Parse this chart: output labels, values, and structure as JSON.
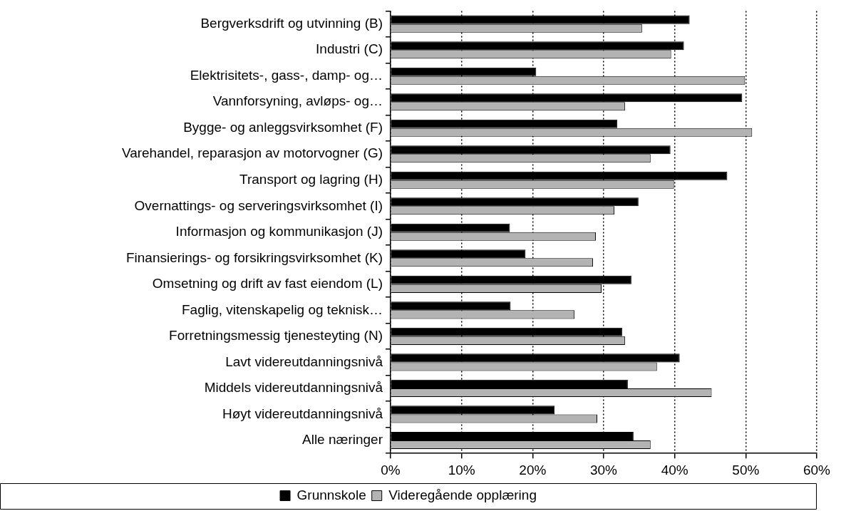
{
  "chart_data": {
    "type": "bar",
    "orientation": "horizontal",
    "categories": [
      "Bergverksdrift og utvinning (B)",
      "Industri (C)",
      "Elektrisitets-, gass-, damp- og…",
      "Vannforsyning, avløps- og…",
      "Bygge- og anleggsvirksomhet (F)",
      "Varehandel, reparasjon av motorvogner (G)",
      "Transport og lagring (H)",
      "Overnattings- og serveringsvirksomhet (I)",
      "Informasjon og kommunikasjon (J)",
      "Finansierings- og forsikringsvirksomhet (K)",
      "Omsetning og drift av fast eiendom (L)",
      "Faglig, vitenskapelig og teknisk…",
      "Forretningsmessig tjenesteyting (N)",
      "Lavt videreutdanningsnivå",
      "Middels videreutdanningsnivå",
      "Høyt videreutdanningsnivå",
      "Alle næringer"
    ],
    "series": [
      {
        "name": "Grunnskole",
        "color": "#000000",
        "values": [
          42.1,
          41.3,
          20.5,
          49.5,
          31.9,
          39.4,
          47.4,
          34.9,
          16.8,
          19.0,
          33.9,
          16.9,
          32.6,
          40.7,
          33.4,
          23.1,
          34.2
        ]
      },
      {
        "name": "Videregående opplæring",
        "color": "#b3b3b3",
        "values": [
          35.4,
          39.5,
          49.9,
          33.0,
          50.9,
          36.6,
          39.9,
          31.5,
          28.9,
          28.5,
          29.7,
          25.9,
          33.0,
          37.5,
          45.2,
          29.1,
          36.6
        ]
      }
    ],
    "xlim": [
      0,
      60
    ],
    "xticks": [
      {
        "value": 0,
        "label": "0%"
      },
      {
        "value": 10,
        "label": "10%"
      },
      {
        "value": 20,
        "label": "20%"
      },
      {
        "value": 30,
        "label": "30%"
      },
      {
        "value": 40,
        "label": "40%"
      },
      {
        "value": 50,
        "label": "50%"
      },
      {
        "value": 60,
        "label": "60%"
      }
    ],
    "grid": "x",
    "legend": "bottom"
  }
}
